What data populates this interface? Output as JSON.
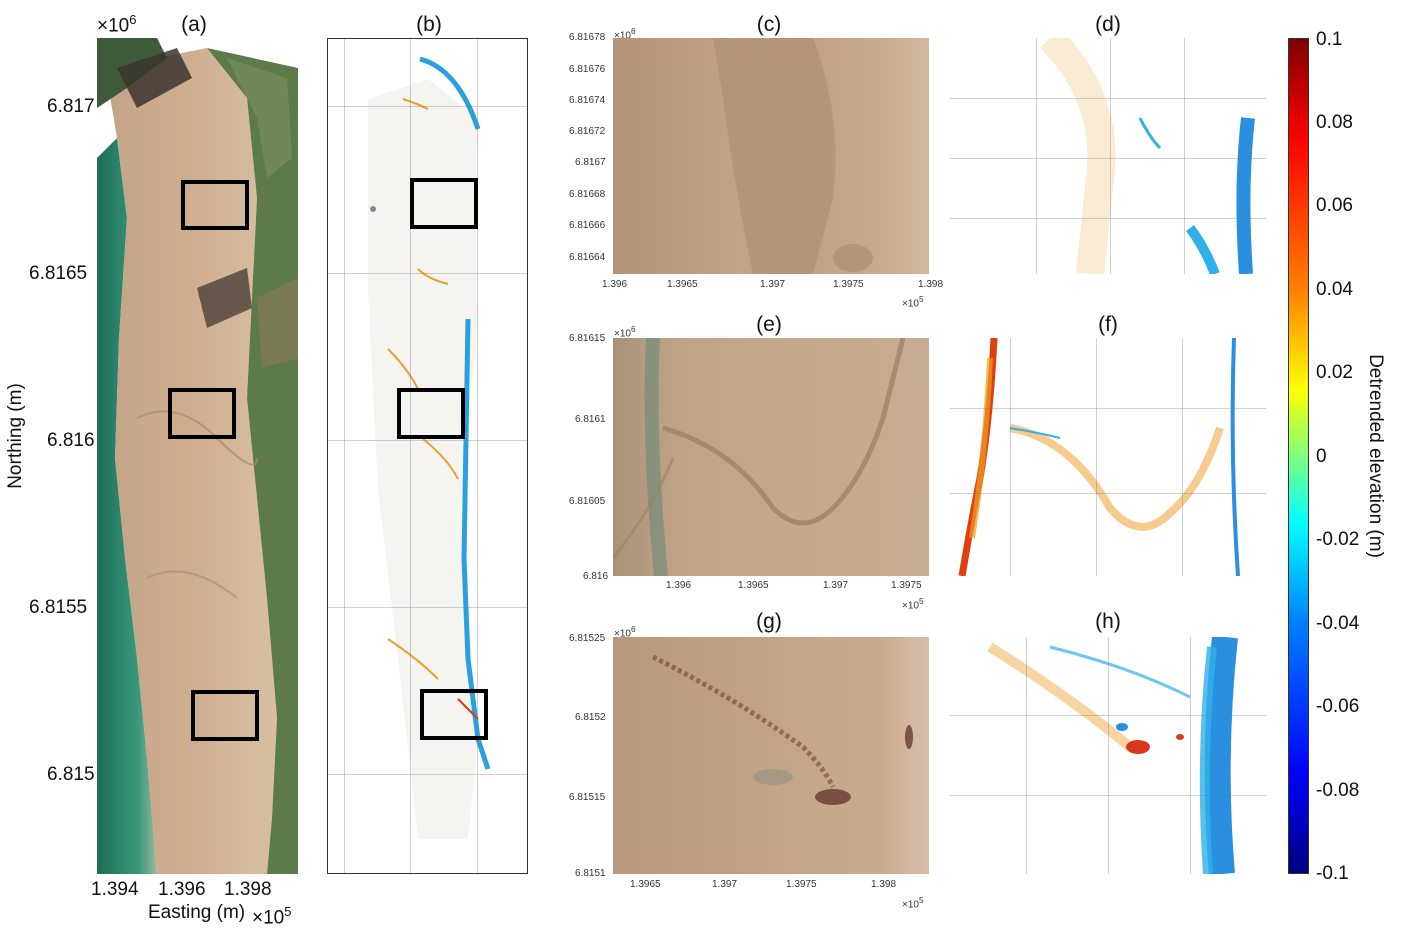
{
  "panels": {
    "a": "(a)",
    "b": "(b)",
    "c": "(c)",
    "d": "(d)",
    "e": "(e)",
    "f": "(f)",
    "g": "(g)",
    "h": "(h)"
  },
  "big_axes": {
    "y_exponent": "×10",
    "y_exponent_power": "6",
    "y_ticks": [
      "6.817",
      "6.8165",
      "6.816",
      "6.8155",
      "6.815"
    ],
    "x_ticks": [
      "1.394",
      "1.396",
      "1.398"
    ],
    "x_exponent": "×10",
    "x_exponent_power": "5",
    "xlabel": "Easting (m)",
    "ylabel": "Northing (m)"
  },
  "panel_c": {
    "y_exponent": "×10",
    "y_exponent_power": "6",
    "y_ticks": [
      "6.81678",
      "6.81676",
      "6.81674",
      "6.81672",
      "6.8167",
      "6.81668",
      "6.81666",
      "6.81664"
    ],
    "x_ticks": [
      "1.396",
      "1.3965",
      "1.397",
      "1.3975",
      "1.398"
    ],
    "x_exponent": "×10",
    "x_exponent_power": "5"
  },
  "panel_e": {
    "y_exponent": "×10",
    "y_exponent_power": "6",
    "y_ticks": [
      "6.81615",
      "6.8161",
      "6.81605",
      "6.816"
    ],
    "x_ticks": [
      "1.396",
      "1.3965",
      "1.397",
      "1.3975"
    ],
    "x_exponent": "×10",
    "x_exponent_power": "5"
  },
  "panel_g": {
    "y_exponent": "×10",
    "y_exponent_power": "6",
    "y_ticks": [
      "6.81525",
      "6.8152",
      "6.81515",
      "6.8151"
    ],
    "x_ticks": [
      "1.3965",
      "1.397",
      "1.3975",
      "1.398"
    ],
    "x_exponent": "×10",
    "x_exponent_power": "5"
  },
  "colorbar": {
    "label": "Detrended elevation (m)",
    "ticks": [
      "0.1",
      "0.08",
      "0.06",
      "0.04",
      "0.02",
      "0",
      "-0.02",
      "-0.04",
      "-0.06",
      "-0.08",
      "-0.1"
    ],
    "min": -0.1,
    "max": 0.1,
    "colormap": "jet"
  },
  "colors": {
    "sand": "#c9a889",
    "sea": "#2e8a6a",
    "vegetation": "#5d7a4a",
    "blue": "#2a9fe0",
    "orange": "#e8a030",
    "red": "#d63a1a"
  }
}
